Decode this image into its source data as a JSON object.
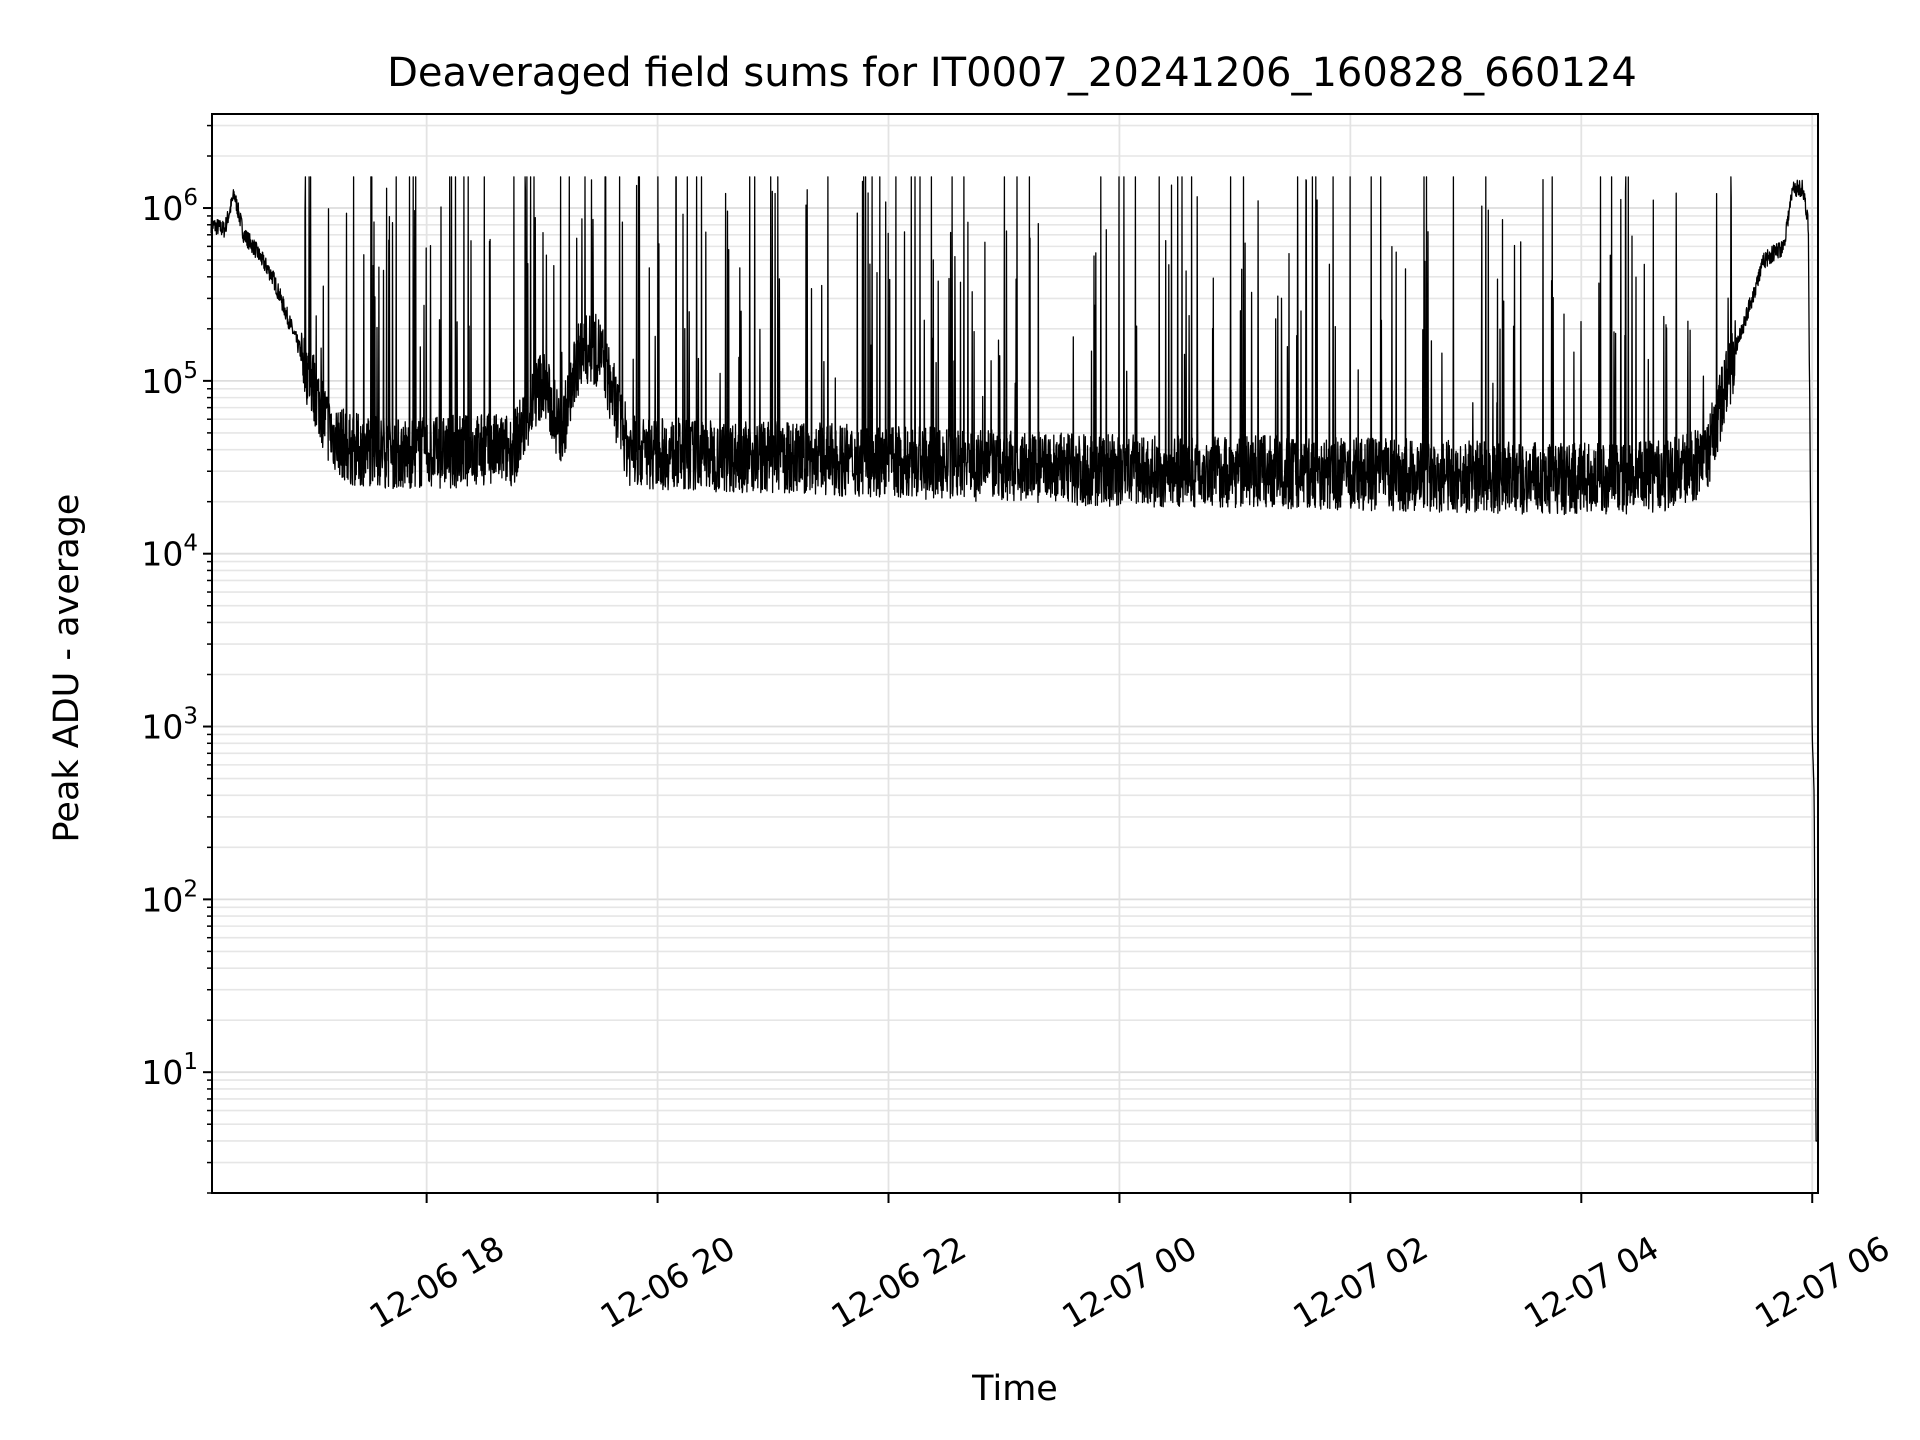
{
  "chart_data": {
    "type": "line",
    "title": "Deaveraged field sums for IT0007_20241206_160828_660124",
    "xlabel": "Time",
    "ylabel": "Peak ADU - average",
    "yscale": "log",
    "ylim": [
      2,
      3500000
    ],
    "xlim": [
      "2024-12-06 16:08:28",
      "2024-12-07 06:03:00"
    ],
    "grid": true,
    "x_ticks": [
      {
        "time": "2024-12-06 18:00",
        "label": "12-06 18"
      },
      {
        "time": "2024-12-06 20:00",
        "label": "12-06 20"
      },
      {
        "time": "2024-12-06 22:00",
        "label": "12-06 22"
      },
      {
        "time": "2024-12-07 00:00",
        "label": "12-07 00"
      },
      {
        "time": "2024-12-07 02:00",
        "label": "12-07 02"
      },
      {
        "time": "2024-12-07 04:00",
        "label": "12-07 04"
      },
      {
        "time": "2024-12-07 06:00",
        "label": "12-07 06"
      }
    ],
    "y_ticks": [
      {
        "value": 10,
        "base": "10",
        "exp": "1"
      },
      {
        "value": 100,
        "base": "10",
        "exp": "2"
      },
      {
        "value": 1000,
        "base": "10",
        "exp": "3"
      },
      {
        "value": 10000,
        "base": "10",
        "exp": "4"
      },
      {
        "value": 100000,
        "base": "10",
        "exp": "5"
      },
      {
        "value": 1000000,
        "base": "10",
        "exp": "6"
      }
    ],
    "series": [
      {
        "color": "#000000",
        "x": [
          "2024-12-06 16:08",
          "2024-12-06 16:15",
          "2024-12-06 16:20",
          "2024-12-06 16:25",
          "2024-12-06 16:30",
          "2024-12-06 16:40",
          "2024-12-06 16:50",
          "2024-12-06 17:00",
          "2024-12-06 17:10",
          "2024-12-06 17:20",
          "2024-12-06 17:30",
          "2024-12-06 17:45",
          "2024-12-06 18:00",
          "2024-12-06 18:30",
          "2024-12-06 18:45",
          "2024-12-06 19:00",
          "2024-12-06 19:10",
          "2024-12-06 19:20",
          "2024-12-06 19:30",
          "2024-12-06 19:45",
          "2024-12-06 20:00",
          "2024-12-06 21:00",
          "2024-12-06 22:00",
          "2024-12-06 23:00",
          "2024-12-07 00:00",
          "2024-12-07 01:00",
          "2024-12-07 02:00",
          "2024-12-07 03:00",
          "2024-12-07 04:00",
          "2024-12-07 04:45",
          "2024-12-07 05:05",
          "2024-12-07 05:20",
          "2024-12-07 05:35",
          "2024-12-07 05:45",
          "2024-12-07 05:50",
          "2024-12-07 05:55",
          "2024-12-07 05:58",
          "2024-12-07 06:00",
          "2024-12-07 06:01",
          "2024-12-07 06:02",
          "2024-12-07 06:03"
        ],
        "y": [
          800000,
          750000,
          1200000,
          700000,
          600000,
          400000,
          200000,
          100000,
          50000,
          40000,
          40000,
          38000,
          38000,
          40000,
          40000,
          100000,
          50000,
          150000,
          150000,
          40000,
          38000,
          36000,
          34000,
          32000,
          30000,
          30000,
          29000,
          28000,
          27000,
          28000,
          35000,
          150000,
          500000,
          600000,
          1300000,
          1300000,
          800000,
          900,
          400,
          4,
          4
        ]
      }
    ]
  }
}
